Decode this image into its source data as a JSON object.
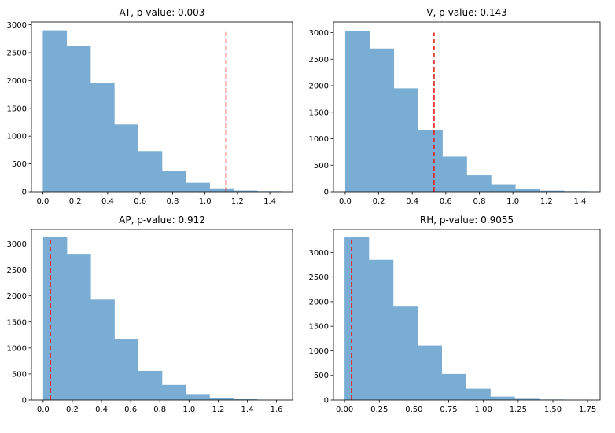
{
  "colors": {
    "bar": "#7aadd3",
    "marker": "#e8221c",
    "axes": "#000000"
  },
  "chart_data": [
    {
      "type": "bar",
      "title": "AT, p-value: 0.003",
      "xlim": [
        -0.07,
        1.54
      ],
      "ylim": [
        0,
        3050
      ],
      "xticks": [
        0.0,
        0.2,
        0.4,
        0.6,
        0.8,
        1.0,
        1.2,
        1.4
      ],
      "xtick_labels": [
        "0.0",
        "0.2",
        "0.4",
        "0.6",
        "0.8",
        "1.0",
        "1.2",
        "1.4"
      ],
      "yticks": [
        0,
        500,
        1000,
        1500,
        2000,
        2500,
        3000
      ],
      "ytick_labels": [
        "0",
        "500",
        "1000",
        "1500",
        "2000",
        "2500",
        "3000"
      ],
      "bin_edges": [
        0.0,
        0.147,
        0.294,
        0.441,
        0.588,
        0.735,
        0.882,
        1.029,
        1.176,
        1.323,
        1.47
      ],
      "values": [
        2900,
        2620,
        1950,
        1210,
        730,
        380,
        160,
        60,
        20,
        10
      ],
      "marker_x": 1.13,
      "marker_top": 2870
    },
    {
      "type": "bar",
      "title": "V, p-value: 0.143",
      "xlim": [
        -0.07,
        1.52
      ],
      "ylim": [
        0,
        3200
      ],
      "xticks": [
        0.0,
        0.2,
        0.4,
        0.6,
        0.8,
        1.0,
        1.2,
        1.4
      ],
      "xtick_labels": [
        "0.0",
        "0.2",
        "0.4",
        "0.6",
        "0.8",
        "1.0",
        "1.2",
        "1.4"
      ],
      "yticks": [
        0,
        500,
        1000,
        1500,
        2000,
        2500,
        3000
      ],
      "ytick_labels": [
        "0",
        "500",
        "1000",
        "1500",
        "2000",
        "2500",
        "3000"
      ],
      "bin_edges": [
        0.0,
        0.145,
        0.29,
        0.435,
        0.58,
        0.725,
        0.87,
        1.015,
        1.16,
        1.305,
        1.45
      ],
      "values": [
        3030,
        2700,
        1950,
        1160,
        660,
        310,
        140,
        55,
        20,
        10
      ],
      "marker_x": 0.53,
      "marker_top": 3000
    },
    {
      "type": "bar",
      "title": "AP, p-value: 0.912",
      "xlim": [
        -0.08,
        1.71
      ],
      "ylim": [
        0,
        3280
      ],
      "xticks": [
        0.0,
        0.2,
        0.4,
        0.6,
        0.8,
        1.0,
        1.2,
        1.4,
        1.6
      ],
      "xtick_labels": [
        "0.0",
        "0.2",
        "0.4",
        "0.6",
        "0.8",
        "1.0",
        "1.2",
        "1.4",
        "1.6"
      ],
      "yticks": [
        0,
        500,
        1000,
        1500,
        2000,
        2500,
        3000
      ],
      "ytick_labels": [
        "0",
        "500",
        "1000",
        "1500",
        "2000",
        "2500",
        "3000"
      ],
      "bin_edges": [
        0.0,
        0.163,
        0.326,
        0.489,
        0.652,
        0.815,
        0.978,
        1.141,
        1.304,
        1.467,
        1.63
      ],
      "values": [
        3130,
        2810,
        1930,
        1170,
        560,
        290,
        100,
        40,
        15,
        5
      ],
      "marker_x": 0.05,
      "marker_top": 3100
    },
    {
      "type": "bar",
      "title": "RH, p-value: 0.9055",
      "xlim": [
        -0.08,
        1.84
      ],
      "ylim": [
        0,
        3470
      ],
      "xticks": [
        0.0,
        0.25,
        0.5,
        0.75,
        1.0,
        1.25,
        1.5,
        1.75
      ],
      "xtick_labels": [
        "0.00",
        "0.25",
        "0.50",
        "0.75",
        "1.00",
        "1.25",
        "1.50",
        "1.75"
      ],
      "yticks": [
        0,
        500,
        1000,
        1500,
        2000,
        2500,
        3000
      ],
      "ytick_labels": [
        "0",
        "500",
        "1000",
        "1500",
        "2000",
        "2500",
        "3000"
      ],
      "bin_edges": [
        0.0,
        0.175,
        0.35,
        0.525,
        0.7,
        0.875,
        1.05,
        1.225,
        1.4,
        1.575,
        1.75
      ],
      "values": [
        3310,
        2850,
        1900,
        1110,
        530,
        230,
        70,
        25,
        10,
        5
      ],
      "marker_x": 0.05,
      "marker_top": 3270
    }
  ]
}
